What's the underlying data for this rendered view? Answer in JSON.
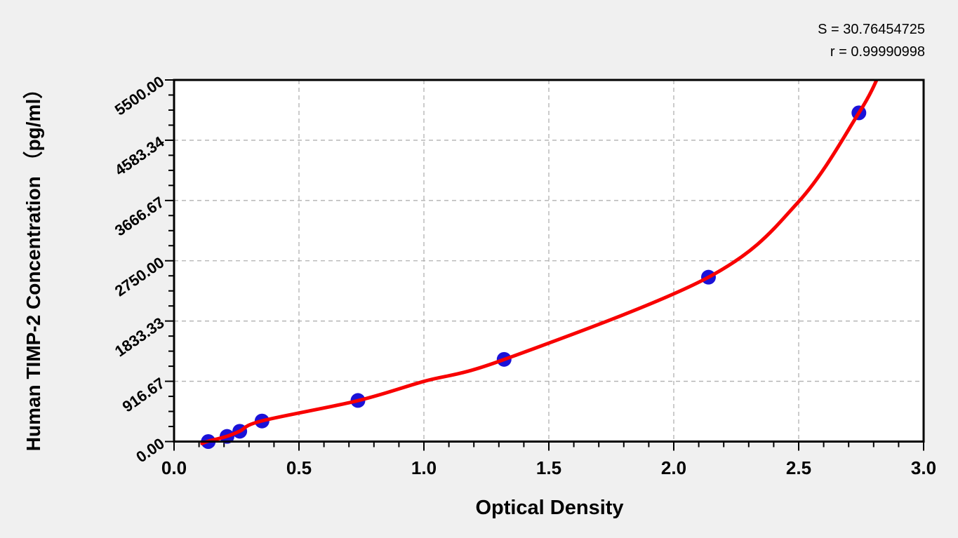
{
  "figure": {
    "background": "#f0f0f0",
    "plot_background": "#ffffff",
    "frame_color": "#000000"
  },
  "stats": {
    "s": "S = 30.76454725",
    "r": "r = 0.99990998"
  },
  "chart_data": {
    "type": "scatter",
    "title": "",
    "xlabel": "Optical Density",
    "ylabel": "Human TIMP-2 Concentration （pg/ml）",
    "xlim": [
      0.0,
      3.0
    ],
    "ylim": [
      0.0,
      5500.0
    ],
    "x_ticks": [
      0.0,
      0.5,
      1.0,
      1.5,
      2.0,
      2.5,
      3.0
    ],
    "x_tick_labels": [
      "0.0",
      "0.5",
      "1.0",
      "1.5",
      "2.0",
      "2.5",
      "3.0"
    ],
    "x_minor_step": 0.1,
    "y_ticks": [
      0.0,
      916.67,
      1833.33,
      2750.0,
      3666.67,
      4583.34,
      5500.0
    ],
    "y_tick_labels": [
      "0.00",
      "916.67",
      "1833.33",
      "2750.00",
      "3666.67",
      "4583.34",
      "5500.00"
    ],
    "y_minor_step": 229.1675,
    "grid": {
      "style": "dashed",
      "color": "#b0b0b0",
      "dash": "6 5",
      "on_major_ticks": true
    },
    "legend": null,
    "fit_stats": {
      "S": 30.76454725,
      "r": 0.99990998
    },
    "series": [
      {
        "name": "standard-points",
        "type": "scatter",
        "marker_color": "#1b12d8",
        "marker_radius": 10.5,
        "points": [
          {
            "od": 0.137,
            "conc": 0
          },
          {
            "od": 0.212,
            "conc": 78.13
          },
          {
            "od": 0.263,
            "conc": 156.25
          },
          {
            "od": 0.352,
            "conc": 312.5
          },
          {
            "od": 0.736,
            "conc": 625
          },
          {
            "od": 1.321,
            "conc": 1250
          },
          {
            "od": 2.139,
            "conc": 2500
          },
          {
            "od": 2.741,
            "conc": 5000
          }
        ]
      },
      {
        "name": "fitted-curve",
        "type": "line",
        "line_color": "#f80000",
        "line_width": 5,
        "points": [
          {
            "od": 0.112,
            "conc": -30
          },
          {
            "od": 0.137,
            "conc": 5
          },
          {
            "od": 0.212,
            "conc": 80
          },
          {
            "od": 0.263,
            "conc": 158
          },
          {
            "od": 0.352,
            "conc": 315
          },
          {
            "od": 0.736,
            "conc": 622
          },
          {
            "od": 1.0,
            "conc": 915
          },
          {
            "od": 1.321,
            "conc": 1248
          },
          {
            "od": 2.139,
            "conc": 2500
          },
          {
            "od": 2.5,
            "conc": 3650
          },
          {
            "od": 2.741,
            "conc": 5000
          },
          {
            "od": 2.815,
            "conc": 5520
          }
        ]
      }
    ]
  }
}
